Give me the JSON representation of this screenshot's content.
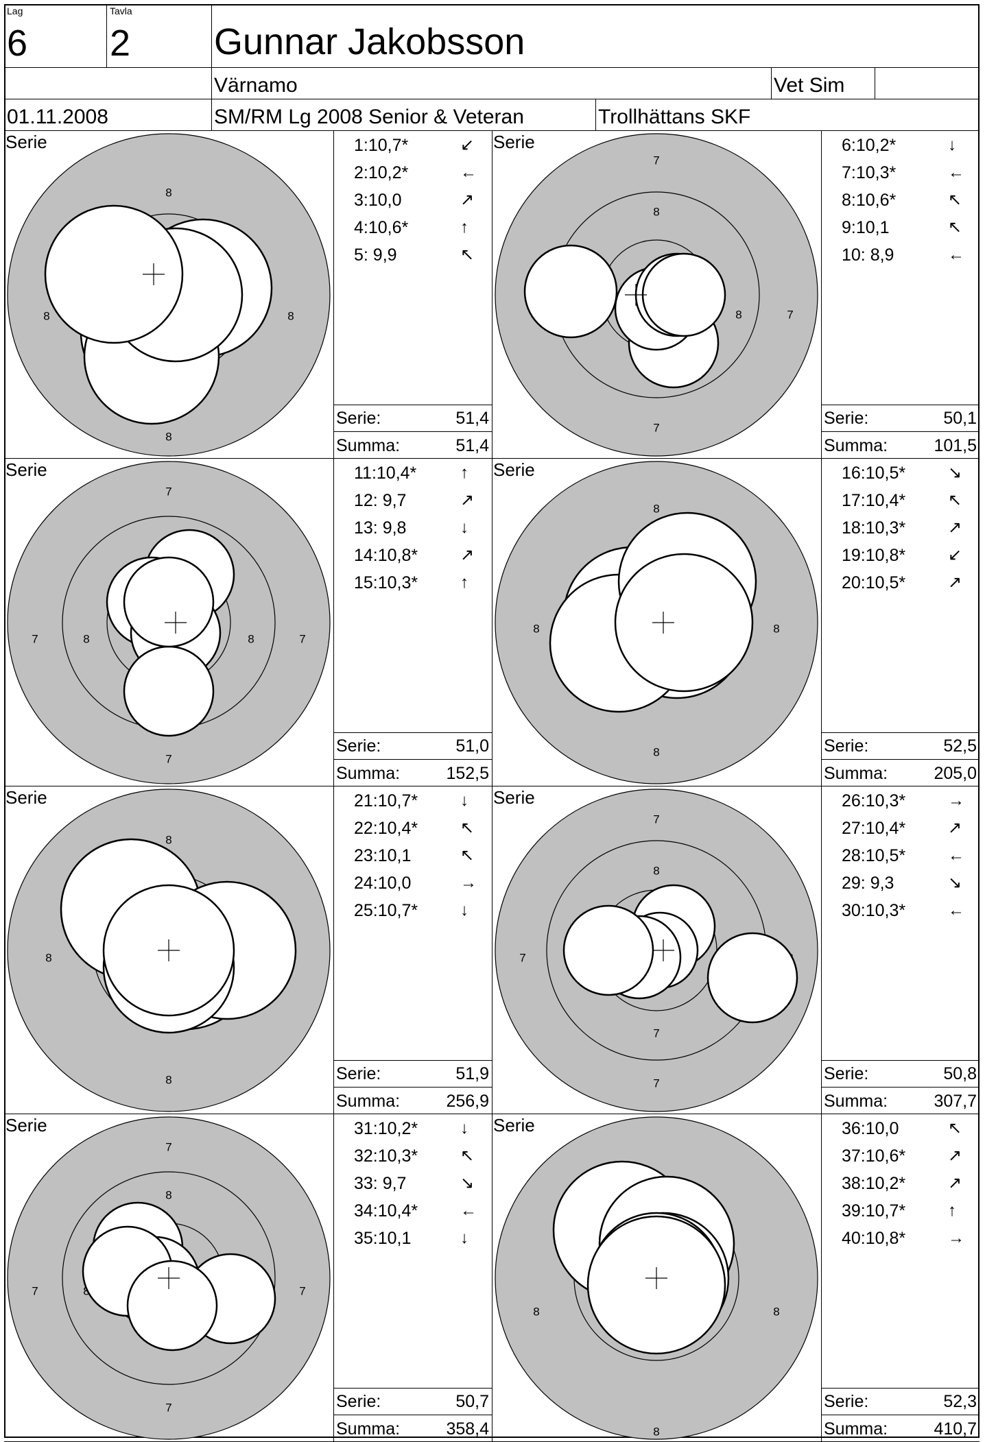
{
  "header": {
    "lag_label": "Lag",
    "lag_value": "6",
    "tavla_label": "Tavla",
    "tavla_value": "2",
    "shooter_name": "Gunnar Jakobsson",
    "club": "Värnamo",
    "class": "Vet Sim",
    "date": "01.11.2008",
    "competition": "SM/RM Lg 2008 Senior & Veteran",
    "organizer": "Trollhättans SKF"
  },
  "labels": {
    "serie_label": "Serie",
    "serie_total_label": "Serie:",
    "summa_label": "Summa:"
  },
  "series": [
    {
      "shots": [
        {
          "n": "1",
          "v": "10,7*",
          "a": "↙"
        },
        {
          "n": "2",
          "v": "10,2*",
          "a": "←"
        },
        {
          "n": "3",
          "v": "10,0",
          "a": "↗"
        },
        {
          "n": "4",
          "v": "10,6*",
          "a": "↑"
        },
        {
          "n": "5",
          "v": " 9,9",
          "a": "↖"
        }
      ],
      "serie": "51,4",
      "summa": "51,4",
      "rings": [
        "8",
        "8",
        "8",
        "8"
      ]
    },
    {
      "shots": [
        {
          "n": "6",
          "v": "10,2*",
          "a": "↓"
        },
        {
          "n": "7",
          "v": "10,3*",
          "a": "←"
        },
        {
          "n": "8",
          "v": "10,6*",
          "a": "↖"
        },
        {
          "n": "9",
          "v": "10,1",
          "a": "↖"
        },
        {
          "n": "10",
          "v": " 8,9",
          "a": "←"
        }
      ],
      "serie": "50,1",
      "summa": "101,5",
      "rings": [
        "7",
        "8",
        "8",
        "7",
        "8",
        "7"
      ]
    },
    {
      "shots": [
        {
          "n": "11",
          "v": "10,4*",
          "a": "↑"
        },
        {
          "n": "12",
          "v": " 9,7",
          "a": "↗"
        },
        {
          "n": "13",
          "v": " 9,8",
          "a": "↓"
        },
        {
          "n": "14",
          "v": "10,8*",
          "a": "↗"
        },
        {
          "n": "15",
          "v": "10,3*",
          "a": "↑"
        }
      ],
      "serie": "51,0",
      "summa": "152,5",
      "rings": [
        "7",
        "7",
        "8",
        "8",
        "7",
        "7"
      ]
    },
    {
      "shots": [
        {
          "n": "16",
          "v": "10,5*",
          "a": "↘"
        },
        {
          "n": "17",
          "v": "10,4*",
          "a": "↖"
        },
        {
          "n": "18",
          "v": "10,3*",
          "a": "↗"
        },
        {
          "n": "19",
          "v": "10,8*",
          "a": "↙"
        },
        {
          "n": "20",
          "v": "10,5*",
          "a": "↗"
        }
      ],
      "serie": "52,5",
      "summa": "205,0",
      "rings": [
        "8",
        "8",
        "8",
        "8"
      ]
    },
    {
      "shots": [
        {
          "n": "21",
          "v": "10,7*",
          "a": "↓"
        },
        {
          "n": "22",
          "v": "10,4*",
          "a": "↖"
        },
        {
          "n": "23",
          "v": "10,1",
          "a": "↖"
        },
        {
          "n": "24",
          "v": "10,0",
          "a": "→"
        },
        {
          "n": "25",
          "v": "10,7*",
          "a": "↓"
        }
      ],
      "serie": "51,9",
      "summa": "256,9",
      "rings": [
        "8",
        "8",
        "8"
      ]
    },
    {
      "shots": [
        {
          "n": "26",
          "v": "10,3*",
          "a": "→"
        },
        {
          "n": "27",
          "v": "10,4*",
          "a": "↗"
        },
        {
          "n": "28",
          "v": "10,5*",
          "a": "←"
        },
        {
          "n": "29",
          "v": " 9,3",
          "a": "↘"
        },
        {
          "n": "30",
          "v": "10,3*",
          "a": "←"
        }
      ],
      "serie": "50,8",
      "summa": "307,7",
      "rings": [
        "7",
        "8",
        "7",
        "8",
        "8",
        "7",
        "7"
      ]
    },
    {
      "shots": [
        {
          "n": "31",
          "v": "10,2*",
          "a": "↓"
        },
        {
          "n": "32",
          "v": "10,3*",
          "a": "↖"
        },
        {
          "n": "33",
          "v": " 9,7",
          "a": "↘"
        },
        {
          "n": "34",
          "v": "10,4*",
          "a": "←"
        },
        {
          "n": "35",
          "v": "10,1",
          "a": "↓"
        }
      ],
      "serie": "50,7",
      "summa": "358,4",
      "rings": [
        "7",
        "8",
        "7",
        "8",
        "7",
        "7"
      ]
    },
    {
      "shots": [
        {
          "n": "36",
          "v": "10,0",
          "a": "↖"
        },
        {
          "n": "37",
          "v": "10,6*",
          "a": "↗"
        },
        {
          "n": "38",
          "v": "10,2*",
          "a": "↗"
        },
        {
          "n": "39",
          "v": "10,7*",
          "a": "↑"
        },
        {
          "n": "40",
          "v": "10,8*",
          "a": "→"
        }
      ],
      "serie": "52,3",
      "summa": "410,7",
      "rings": [
        "8",
        "8",
        "8"
      ]
    }
  ],
  "colors": {
    "target_gray": "#c0c0c0",
    "line": "#000000",
    "hit_fill": "#ffffff"
  }
}
